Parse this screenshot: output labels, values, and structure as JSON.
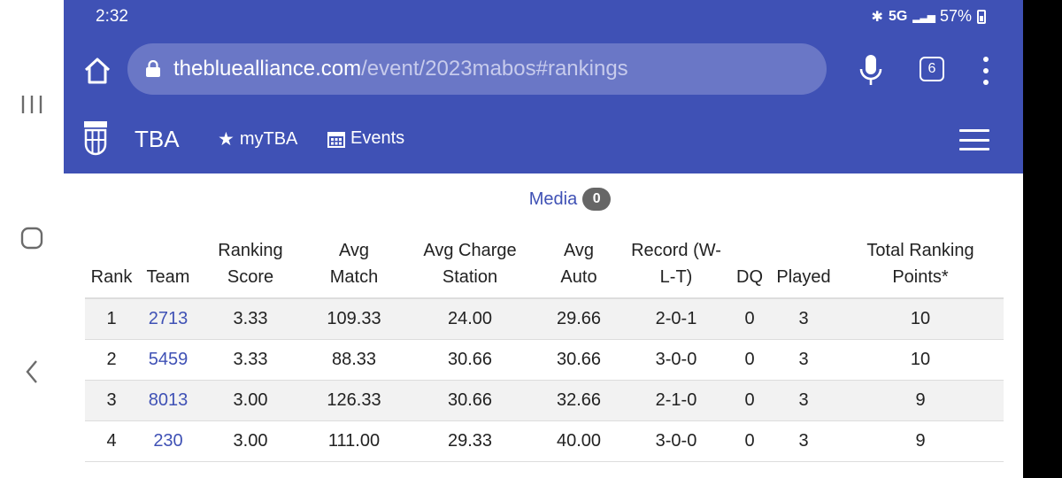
{
  "status_bar": {
    "time": "2:32",
    "network": "5G",
    "battery": "57%"
  },
  "browser": {
    "url_host": "thebluealliance.com",
    "url_path": "/event/2023mabos#rankings",
    "tab_count": "6"
  },
  "site_nav": {
    "brand": "TBA",
    "mytba": "myTBA",
    "events": "Events"
  },
  "media": {
    "label": "Media",
    "count": "0"
  },
  "table": {
    "headers": {
      "rank": "Rank",
      "team": "Team",
      "score_1": "Ranking",
      "score_2": "Score",
      "match_1": "Avg",
      "match_2": "Match",
      "charge_1": "Avg Charge",
      "charge_2": "Station",
      "auto_1": "Avg",
      "auto_2": "Auto",
      "record_1": "Record (W-",
      "record_2": "L-T)",
      "dq": "DQ",
      "played": "Played",
      "total_1": "Total Ranking",
      "total_2": "Points*"
    },
    "rows": [
      {
        "rank": "1",
        "team": "2713",
        "score": "3.33",
        "match": "109.33",
        "charge": "24.00",
        "auto": "29.66",
        "record": "2-0-1",
        "dq": "0",
        "played": "3",
        "total": "10"
      },
      {
        "rank": "2",
        "team": "5459",
        "score": "3.33",
        "match": "88.33",
        "charge": "30.66",
        "auto": "30.66",
        "record": "3-0-0",
        "dq": "0",
        "played": "3",
        "total": "10"
      },
      {
        "rank": "3",
        "team": "8013",
        "score": "3.00",
        "match": "126.33",
        "charge": "30.66",
        "auto": "32.66",
        "record": "2-1-0",
        "dq": "0",
        "played": "3",
        "total": "9"
      },
      {
        "rank": "4",
        "team": "230",
        "score": "3.00",
        "match": "111.00",
        "charge": "29.33",
        "auto": "40.00",
        "record": "3-0-0",
        "dq": "0",
        "played": "3",
        "total": "9"
      }
    ]
  }
}
